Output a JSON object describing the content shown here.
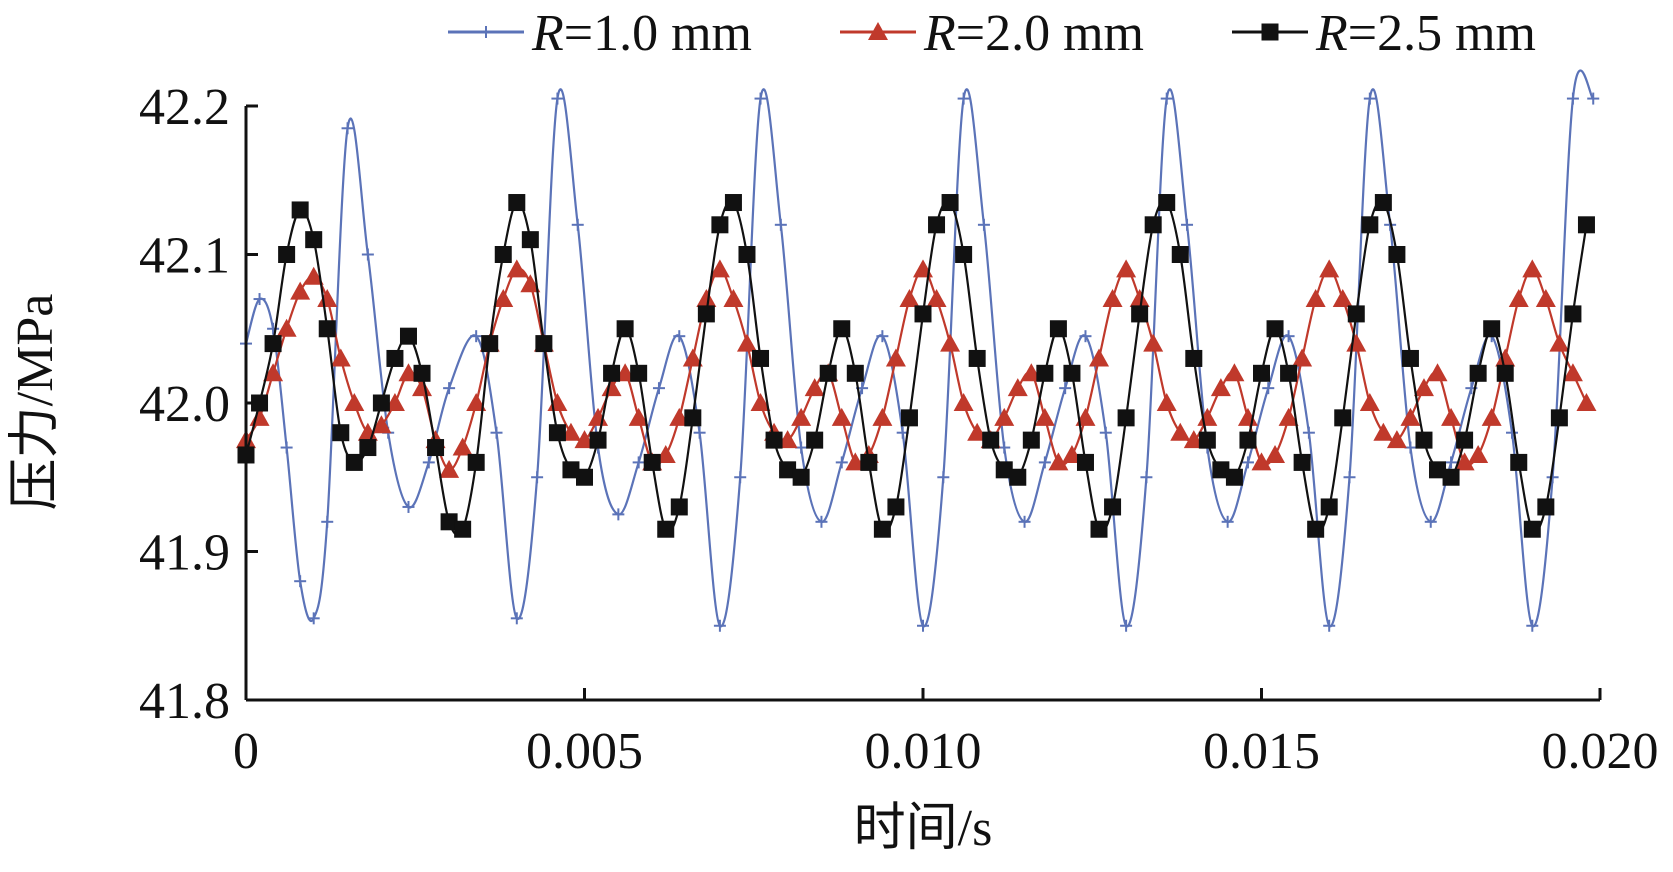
{
  "chart_data": {
    "type": "line",
    "xlabel": "时间/s",
    "ylabel": "压力/MPa",
    "xlim": [
      0,
      0.02
    ],
    "ylim": [
      41.8,
      42.2
    ],
    "x_ticks": [
      "0",
      "0.005",
      "0.010",
      "0.015",
      "0.020"
    ],
    "y_ticks": [
      "41.8",
      "41.9",
      "42.0",
      "42.1",
      "42.2"
    ],
    "grid": false,
    "legend_position": "top",
    "series": [
      {
        "name": "R=1.0 mm",
        "legend_italic": "R",
        "legend_rest": "=1.0 mm",
        "color": "#5b73b8",
        "marker": "plus",
        "x": [
          0.0,
          0.0002,
          0.0004,
          0.0006,
          0.0008,
          0.001,
          0.0012,
          0.0015,
          0.0018,
          0.0021,
          0.0024,
          0.0027,
          0.003,
          0.0034,
          0.0037,
          0.004,
          0.0043,
          0.0046,
          0.0049,
          0.0052,
          0.0055,
          0.0058,
          0.0061,
          0.0064,
          0.0067,
          0.007,
          0.0073,
          0.0076,
          0.0079,
          0.0082,
          0.0085,
          0.0088,
          0.0091,
          0.0094,
          0.0097,
          0.01,
          0.0103,
          0.0106,
          0.0109,
          0.0112,
          0.0115,
          0.0118,
          0.0121,
          0.0124,
          0.0127,
          0.013,
          0.0133,
          0.0136,
          0.0139,
          0.0142,
          0.0145,
          0.0148,
          0.0151,
          0.0154,
          0.0157,
          0.016,
          0.0163,
          0.0166,
          0.0169,
          0.0172,
          0.0175,
          0.0178,
          0.0181,
          0.0184,
          0.0187,
          0.019,
          0.0193,
          0.0196,
          0.0199
        ],
        "y": [
          42.04,
          42.07,
          42.05,
          41.97,
          41.88,
          41.855,
          41.92,
          42.185,
          42.1,
          41.98,
          41.93,
          41.96,
          42.01,
          42.045,
          41.98,
          41.855,
          41.95,
          42.205,
          42.12,
          41.97,
          41.925,
          41.96,
          42.01,
          42.045,
          41.98,
          41.85,
          41.95,
          42.205,
          42.12,
          41.97,
          41.92,
          41.96,
          42.01,
          42.045,
          41.98,
          41.85,
          41.95,
          42.205,
          42.12,
          41.97,
          41.92,
          41.96,
          42.01,
          42.045,
          41.98,
          41.85,
          41.95,
          42.205,
          42.12,
          41.97,
          41.92,
          41.96,
          42.01,
          42.045,
          41.98,
          41.85,
          41.95,
          42.205,
          42.12,
          41.97,
          41.92,
          41.96,
          42.01,
          42.045,
          41.98,
          41.85,
          41.95,
          42.205,
          42.205
        ]
      },
      {
        "name": "R=2.0 mm",
        "legend_italic": "R",
        "legend_rest": "=2.0 mm",
        "color": "#c0392b",
        "marker": "triangle",
        "x": [
          0.0,
          0.0002,
          0.0004,
          0.0006,
          0.0008,
          0.001,
          0.0012,
          0.0014,
          0.0016,
          0.0018,
          0.002,
          0.0022,
          0.0024,
          0.0026,
          0.0028,
          0.003,
          0.0032,
          0.0034,
          0.0036,
          0.0038,
          0.004,
          0.0042,
          0.0044,
          0.0046,
          0.0048,
          0.005,
          0.0052,
          0.0054,
          0.0056,
          0.0058,
          0.006,
          0.0062,
          0.0064,
          0.0066,
          0.0068,
          0.007,
          0.0072,
          0.0074,
          0.0076,
          0.0078,
          0.008,
          0.0082,
          0.0084,
          0.0086,
          0.0088,
          0.009,
          0.0092,
          0.0094,
          0.0096,
          0.0098,
          0.01,
          0.0102,
          0.0104,
          0.0106,
          0.0108,
          0.011,
          0.0112,
          0.0114,
          0.0116,
          0.0118,
          0.012,
          0.0122,
          0.0124,
          0.0126,
          0.0128,
          0.013,
          0.0132,
          0.0134,
          0.0136,
          0.0138,
          0.014,
          0.0142,
          0.0144,
          0.0146,
          0.0148,
          0.015,
          0.0152,
          0.0154,
          0.0156,
          0.0158,
          0.016,
          0.0162,
          0.0164,
          0.0166,
          0.0168,
          0.017,
          0.0172,
          0.0174,
          0.0176,
          0.0178,
          0.018,
          0.0182,
          0.0184,
          0.0186,
          0.0188,
          0.019,
          0.0192,
          0.0194,
          0.0196,
          0.0198
        ],
        "y": [
          41.975,
          41.99,
          42.02,
          42.05,
          42.075,
          42.085,
          42.07,
          42.03,
          42.0,
          41.98,
          41.985,
          42.0,
          42.02,
          42.01,
          41.975,
          41.955,
          41.97,
          42.0,
          42.04,
          42.07,
          42.09,
          42.08,
          42.04,
          42.0,
          41.98,
          41.975,
          41.99,
          42.01,
          42.02,
          41.99,
          41.96,
          41.965,
          41.99,
          42.03,
          42.07,
          42.09,
          42.07,
          42.04,
          42.0,
          41.98,
          41.975,
          41.99,
          42.01,
          42.02,
          41.99,
          41.96,
          41.965,
          41.99,
          42.03,
          42.07,
          42.09,
          42.07,
          42.04,
          42.0,
          41.98,
          41.975,
          41.99,
          42.01,
          42.02,
          41.99,
          41.96,
          41.965,
          41.99,
          42.03,
          42.07,
          42.09,
          42.07,
          42.04,
          42.0,
          41.98,
          41.975,
          41.99,
          42.01,
          42.02,
          41.99,
          41.96,
          41.965,
          41.99,
          42.03,
          42.07,
          42.09,
          42.07,
          42.04,
          42.0,
          41.98,
          41.975,
          41.99,
          42.01,
          42.02,
          41.99,
          41.96,
          41.965,
          41.99,
          42.03,
          42.07,
          42.09,
          42.07,
          42.04,
          42.02,
          42.0
        ]
      },
      {
        "name": "R=2.5 mm",
        "legend_italic": "R",
        "legend_rest": "=2.5 mm",
        "color": "#111111",
        "marker": "square",
        "x": [
          0.0,
          0.0002,
          0.0004,
          0.0006,
          0.0008,
          0.001,
          0.0012,
          0.0014,
          0.0016,
          0.0018,
          0.002,
          0.0022,
          0.0024,
          0.0026,
          0.0028,
          0.003,
          0.0032,
          0.0034,
          0.0036,
          0.0038,
          0.004,
          0.0042,
          0.0044,
          0.0046,
          0.0048,
          0.005,
          0.0052,
          0.0054,
          0.0056,
          0.0058,
          0.006,
          0.0062,
          0.0064,
          0.0066,
          0.0068,
          0.007,
          0.0072,
          0.0074,
          0.0076,
          0.0078,
          0.008,
          0.0082,
          0.0084,
          0.0086,
          0.0088,
          0.009,
          0.0092,
          0.0094,
          0.0096,
          0.0098,
          0.01,
          0.0102,
          0.0104,
          0.0106,
          0.0108,
          0.011,
          0.0112,
          0.0114,
          0.0116,
          0.0118,
          0.012,
          0.0122,
          0.0124,
          0.0126,
          0.0128,
          0.013,
          0.0132,
          0.0134,
          0.0136,
          0.0138,
          0.014,
          0.0142,
          0.0144,
          0.0146,
          0.0148,
          0.015,
          0.0152,
          0.0154,
          0.0156,
          0.0158,
          0.016,
          0.0162,
          0.0164,
          0.0166,
          0.0168,
          0.017,
          0.0172,
          0.0174,
          0.0176,
          0.0178,
          0.018,
          0.0182,
          0.0184,
          0.0186,
          0.0188,
          0.019,
          0.0192,
          0.0194,
          0.0196,
          0.0198
        ],
        "y": [
          41.965,
          42.0,
          42.04,
          42.1,
          42.13,
          42.11,
          42.05,
          41.98,
          41.96,
          41.97,
          42.0,
          42.03,
          42.045,
          42.02,
          41.97,
          41.92,
          41.915,
          41.96,
          42.04,
          42.1,
          42.135,
          42.11,
          42.04,
          41.98,
          41.955,
          41.95,
          41.975,
          42.02,
          42.05,
          42.02,
          41.96,
          41.915,
          41.93,
          41.99,
          42.06,
          42.12,
          42.135,
          42.1,
          42.03,
          41.975,
          41.955,
          41.95,
          41.975,
          42.02,
          42.05,
          42.02,
          41.96,
          41.915,
          41.93,
          41.99,
          42.06,
          42.12,
          42.135,
          42.1,
          42.03,
          41.975,
          41.955,
          41.95,
          41.975,
          42.02,
          42.05,
          42.02,
          41.96,
          41.915,
          41.93,
          41.99,
          42.06,
          42.12,
          42.135,
          42.1,
          42.03,
          41.975,
          41.955,
          41.95,
          41.975,
          42.02,
          42.05,
          42.02,
          41.96,
          41.915,
          41.93,
          41.99,
          42.06,
          42.12,
          42.135,
          42.1,
          42.03,
          41.975,
          41.955,
          41.95,
          41.975,
          42.02,
          42.05,
          42.02,
          41.96,
          41.915,
          41.93,
          41.99,
          42.06,
          42.12
        ]
      }
    ]
  }
}
